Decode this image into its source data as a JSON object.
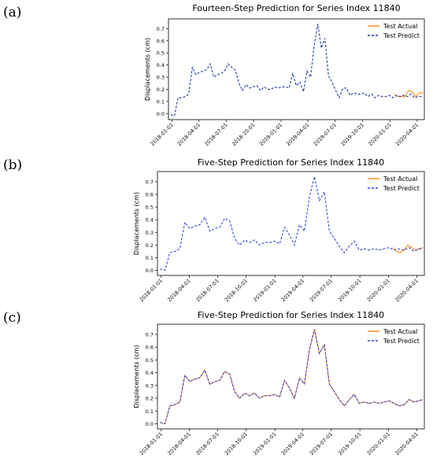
{
  "panels": [
    {
      "label": "(a)",
      "chart_data": {
        "type": "line",
        "title": "Fourteen-Step Prediction for Series Index 11840",
        "xlabel": "",
        "ylabel": "Displacements (cm)",
        "ylim": [
          -0.05,
          0.78
        ],
        "yticks": [
          0.0,
          0.1,
          0.2,
          0.3,
          0.4,
          0.5,
          0.6,
          0.7
        ],
        "ytick_labels": [
          "0.0",
          "0.1",
          "0.2",
          "0.3",
          "0.4",
          "0.5",
          "0.6",
          "0.7"
        ],
        "xlim": [
          "2017-12-20",
          "2020-04-25"
        ],
        "xticks": [
          "2018-01-01",
          "2018-04-01",
          "2018-07-01",
          "2018-10-01",
          "2019-01-01",
          "2019-04-01",
          "2019-07-01",
          "2019-10-01",
          "2020-01-01",
          "2020-04-01"
        ],
        "legend_position": "top-right",
        "series": [
          {
            "name": "Test Actual",
            "color": "#ff8c1a",
            "style": "solid",
            "x": [
              "2020-01-15",
              "2020-01-27",
              "2020-02-08",
              "2020-02-20",
              "2020-03-03",
              "2020-03-15",
              "2020-03-27",
              "2020-04-08",
              "2020-04-20"
            ],
            "values": [
              0.16,
              0.14,
              0.14,
              0.14,
              0.19,
              0.18,
              0.14,
              0.17,
              0.17
            ]
          },
          {
            "name": "Test Predict",
            "color": "#1f3b9e",
            "style": "dashed",
            "x": [
              "2017-12-28",
              "2018-01-09",
              "2018-01-21",
              "2018-02-02",
              "2018-02-14",
              "2018-02-26",
              "2018-03-10",
              "2018-03-22",
              "2018-04-03",
              "2018-04-15",
              "2018-04-27",
              "2018-05-09",
              "2018-05-21",
              "2018-06-02",
              "2018-06-14",
              "2018-06-26",
              "2018-07-08",
              "2018-07-20",
              "2018-08-01",
              "2018-08-13",
              "2018-08-25",
              "2018-09-06",
              "2018-09-18",
              "2018-09-30",
              "2018-10-12",
              "2018-10-24",
              "2018-11-05",
              "2018-11-17",
              "2018-11-29",
              "2018-12-11",
              "2018-12-23",
              "2019-01-04",
              "2019-01-16",
              "2019-01-28",
              "2019-02-09",
              "2019-02-21",
              "2019-03-05",
              "2019-03-17",
              "2019-03-29",
              "2019-04-10",
              "2019-04-22",
              "2019-05-04",
              "2019-05-16",
              "2019-05-28",
              "2019-06-09",
              "2019-06-21",
              "2019-07-03",
              "2019-07-15",
              "2019-07-27",
              "2019-08-08",
              "2019-08-20",
              "2019-09-01",
              "2019-09-13",
              "2019-09-25",
              "2019-10-07",
              "2019-10-19",
              "2019-10-31",
              "2019-11-12",
              "2019-11-24",
              "2019-12-06",
              "2019-12-18",
              "2019-12-30",
              "2020-01-11",
              "2020-01-23",
              "2020-02-04",
              "2020-02-16",
              "2020-02-28",
              "2020-03-11",
              "2020-03-23",
              "2020-04-04",
              "2020-04-16"
            ],
            "values": [
              -0.01,
              -0.02,
              0.13,
              0.13,
              0.14,
              0.16,
              0.38,
              0.32,
              0.34,
              0.35,
              0.36,
              0.41,
              0.3,
              0.32,
              0.33,
              0.35,
              0.41,
              0.38,
              0.36,
              0.25,
              0.19,
              0.24,
              0.21,
              0.22,
              0.23,
              0.19,
              0.22,
              0.2,
              0.2,
              0.22,
              0.21,
              0.22,
              0.22,
              0.21,
              0.33,
              0.23,
              0.26,
              0.18,
              0.35,
              0.3,
              0.56,
              0.74,
              0.54,
              0.62,
              0.31,
              0.26,
              0.19,
              0.13,
              0.21,
              0.21,
              0.15,
              0.17,
              0.16,
              0.16,
              0.17,
              0.14,
              0.16,
              0.13,
              0.15,
              0.14,
              0.14,
              0.15,
              0.13,
              0.15,
              0.14,
              0.15,
              0.14,
              0.16,
              0.13,
              0.14,
              0.14
            ]
          }
        ]
      }
    },
    {
      "label": "(b)",
      "chart_data": {
        "type": "line",
        "title": "Five-Step Prediction for Series Index 11840",
        "xlabel": "",
        "ylabel": "Displacements (cm)",
        "ylim": [
          -0.04,
          0.78
        ],
        "yticks": [
          0.0,
          0.1,
          0.2,
          0.3,
          0.4,
          0.5,
          0.6,
          0.7
        ],
        "ytick_labels": [
          "0.0",
          "0.1",
          "0.2",
          "0.3",
          "0.4",
          "0.5",
          "0.6",
          "0.7"
        ],
        "xlim": [
          "2017-12-20",
          "2020-04-25"
        ],
        "xticks": [
          "2018-01-01",
          "2018-04-01",
          "2018-07-01",
          "2018-10-01",
          "2019-01-01",
          "2019-04-01",
          "2019-07-01",
          "2019-10-01",
          "2020-01-01",
          "2020-04-01"
        ],
        "legend_position": "top-right",
        "series": [
          {
            "name": "Test Actual",
            "color": "#ff8c1a",
            "style": "solid",
            "x": [
              "2020-01-15",
              "2020-01-27",
              "2020-02-08",
              "2020-02-20",
              "2020-03-03",
              "2020-03-15",
              "2020-03-27",
              "2020-04-08",
              "2020-04-20"
            ],
            "values": [
              0.18,
              0.15,
              0.14,
              0.16,
              0.2,
              0.18,
              0.16,
              0.17,
              0.18
            ]
          },
          {
            "name": "Test Predict",
            "color": "#3344dd",
            "style": "dashed",
            "x": [
              "2017-12-28",
              "2018-01-13",
              "2018-01-29",
              "2018-02-14",
              "2018-03-02",
              "2018-03-18",
              "2018-04-03",
              "2018-04-19",
              "2018-05-05",
              "2018-05-21",
              "2018-06-06",
              "2018-06-22",
              "2018-07-08",
              "2018-07-24",
              "2018-08-09",
              "2018-08-25",
              "2018-09-10",
              "2018-09-26",
              "2018-10-12",
              "2018-10-28",
              "2018-11-13",
              "2018-11-29",
              "2018-12-15",
              "2018-12-31",
              "2019-01-16",
              "2019-02-01",
              "2019-02-17",
              "2019-03-05",
              "2019-03-21",
              "2019-04-06",
              "2019-04-22",
              "2019-05-08",
              "2019-05-24",
              "2019-06-09",
              "2019-06-25",
              "2019-07-11",
              "2019-07-27",
              "2019-08-12",
              "2019-08-28",
              "2019-09-13",
              "2019-09-29",
              "2019-10-15",
              "2019-10-31",
              "2019-11-16",
              "2019-12-02",
              "2019-12-18",
              "2020-01-03",
              "2020-01-19",
              "2020-02-04",
              "2020-02-20",
              "2020-03-07",
              "2020-03-23",
              "2020-04-08",
              "2020-04-20"
            ],
            "values": [
              0.01,
              0.0,
              0.14,
              0.15,
              0.17,
              0.38,
              0.33,
              0.35,
              0.36,
              0.42,
              0.31,
              0.33,
              0.34,
              0.41,
              0.39,
              0.25,
              0.2,
              0.24,
              0.22,
              0.24,
              0.2,
              0.22,
              0.22,
              0.23,
              0.21,
              0.34,
              0.28,
              0.2,
              0.36,
              0.31,
              0.58,
              0.74,
              0.55,
              0.62,
              0.31,
              0.25,
              0.19,
              0.14,
              0.19,
              0.23,
              0.16,
              0.17,
              0.16,
              0.17,
              0.16,
              0.17,
              0.18,
              0.16,
              0.17,
              0.16,
              0.18,
              0.15,
              0.17,
              0.17
            ]
          }
        ]
      }
    },
    {
      "label": "(c)",
      "chart_data": {
        "type": "line",
        "title": "Five-Step Prediction for Series Index 11840",
        "xlabel": "",
        "ylabel": "Displacements (cm)",
        "ylim": [
          -0.04,
          0.78
        ],
        "yticks": [
          0.0,
          0.1,
          0.2,
          0.3,
          0.4,
          0.5,
          0.6,
          0.7
        ],
        "ytick_labels": [
          "0.0",
          "0.1",
          "0.2",
          "0.3",
          "0.4",
          "0.5",
          "0.6",
          "0.7"
        ],
        "xlim": [
          "2017-12-20",
          "2020-04-25"
        ],
        "xticks": [
          "2018-01-01",
          "2018-04-01",
          "2018-07-01",
          "2018-10-01",
          "2019-01-01",
          "2019-04-01",
          "2019-07-01",
          "2019-10-01",
          "2020-01-01",
          "2020-04-01"
        ],
        "legend_position": "top-right",
        "series": [
          {
            "name": "Test Actual",
            "color": "#ff8c1a",
            "style": "solid",
            "x": [
              "2017-12-28",
              "2018-01-13",
              "2018-01-29",
              "2018-02-14",
              "2018-03-02",
              "2018-03-18",
              "2018-04-03",
              "2018-04-19",
              "2018-05-05",
              "2018-05-21",
              "2018-06-06",
              "2018-06-22",
              "2018-07-08",
              "2018-07-24",
              "2018-08-09",
              "2018-08-25",
              "2018-09-10",
              "2018-09-26",
              "2018-10-12",
              "2018-10-28",
              "2018-11-13",
              "2018-11-29",
              "2018-12-15",
              "2018-12-31",
              "2019-01-16",
              "2019-02-01",
              "2019-02-17",
              "2019-03-05",
              "2019-03-21",
              "2019-04-06",
              "2019-04-22",
              "2019-05-08",
              "2019-05-24",
              "2019-06-09",
              "2019-06-25",
              "2019-07-11",
              "2019-07-27",
              "2019-08-12",
              "2019-08-28",
              "2019-09-13",
              "2019-09-29",
              "2019-10-15",
              "2019-10-31",
              "2019-11-16",
              "2019-12-02",
              "2019-12-18",
              "2020-01-03",
              "2020-01-19",
              "2020-02-04",
              "2020-02-20",
              "2020-03-07",
              "2020-03-23",
              "2020-04-08",
              "2020-04-20"
            ],
            "values": [
              0.01,
              0.0,
              0.14,
              0.15,
              0.17,
              0.38,
              0.33,
              0.35,
              0.36,
              0.42,
              0.31,
              0.33,
              0.34,
              0.41,
              0.39,
              0.25,
              0.2,
              0.24,
              0.22,
              0.24,
              0.2,
              0.22,
              0.22,
              0.23,
              0.21,
              0.34,
              0.28,
              0.2,
              0.36,
              0.31,
              0.58,
              0.74,
              0.55,
              0.62,
              0.31,
              0.25,
              0.19,
              0.14,
              0.19,
              0.23,
              0.16,
              0.17,
              0.16,
              0.17,
              0.16,
              0.17,
              0.18,
              0.16,
              0.14,
              0.15,
              0.19,
              0.17,
              0.18,
              0.19
            ]
          },
          {
            "name": "Test Predict",
            "color": "#3344dd",
            "style": "dashed",
            "x": [
              "2017-12-28",
              "2018-01-13",
              "2018-01-29",
              "2018-02-14",
              "2018-03-02",
              "2018-03-18",
              "2018-04-03",
              "2018-04-19",
              "2018-05-05",
              "2018-05-21",
              "2018-06-06",
              "2018-06-22",
              "2018-07-08",
              "2018-07-24",
              "2018-08-09",
              "2018-08-25",
              "2018-09-10",
              "2018-09-26",
              "2018-10-12",
              "2018-10-28",
              "2018-11-13",
              "2018-11-29",
              "2018-12-15",
              "2018-12-31",
              "2019-01-16",
              "2019-02-01",
              "2019-02-17",
              "2019-03-05",
              "2019-03-21",
              "2019-04-06",
              "2019-04-22",
              "2019-05-08",
              "2019-05-24",
              "2019-06-09",
              "2019-06-25",
              "2019-07-11",
              "2019-07-27",
              "2019-08-12",
              "2019-08-28",
              "2019-09-13",
              "2019-09-29",
              "2019-10-15",
              "2019-10-31",
              "2019-11-16",
              "2019-12-02",
              "2019-12-18",
              "2020-01-03",
              "2020-01-19",
              "2020-02-04",
              "2020-02-20",
              "2020-03-07",
              "2020-03-23",
              "2020-04-08",
              "2020-04-20"
            ],
            "values": [
              0.01,
              0.0,
              0.14,
              0.15,
              0.17,
              0.38,
              0.33,
              0.35,
              0.36,
              0.42,
              0.31,
              0.33,
              0.34,
              0.41,
              0.39,
              0.25,
              0.2,
              0.24,
              0.22,
              0.24,
              0.2,
              0.22,
              0.22,
              0.23,
              0.21,
              0.34,
              0.28,
              0.2,
              0.36,
              0.31,
              0.58,
              0.74,
              0.55,
              0.62,
              0.31,
              0.25,
              0.19,
              0.14,
              0.19,
              0.23,
              0.16,
              0.17,
              0.16,
              0.17,
              0.16,
              0.17,
              0.18,
              0.16,
              0.14,
              0.15,
              0.19,
              0.17,
              0.18,
              0.19
            ]
          }
        ]
      }
    }
  ]
}
